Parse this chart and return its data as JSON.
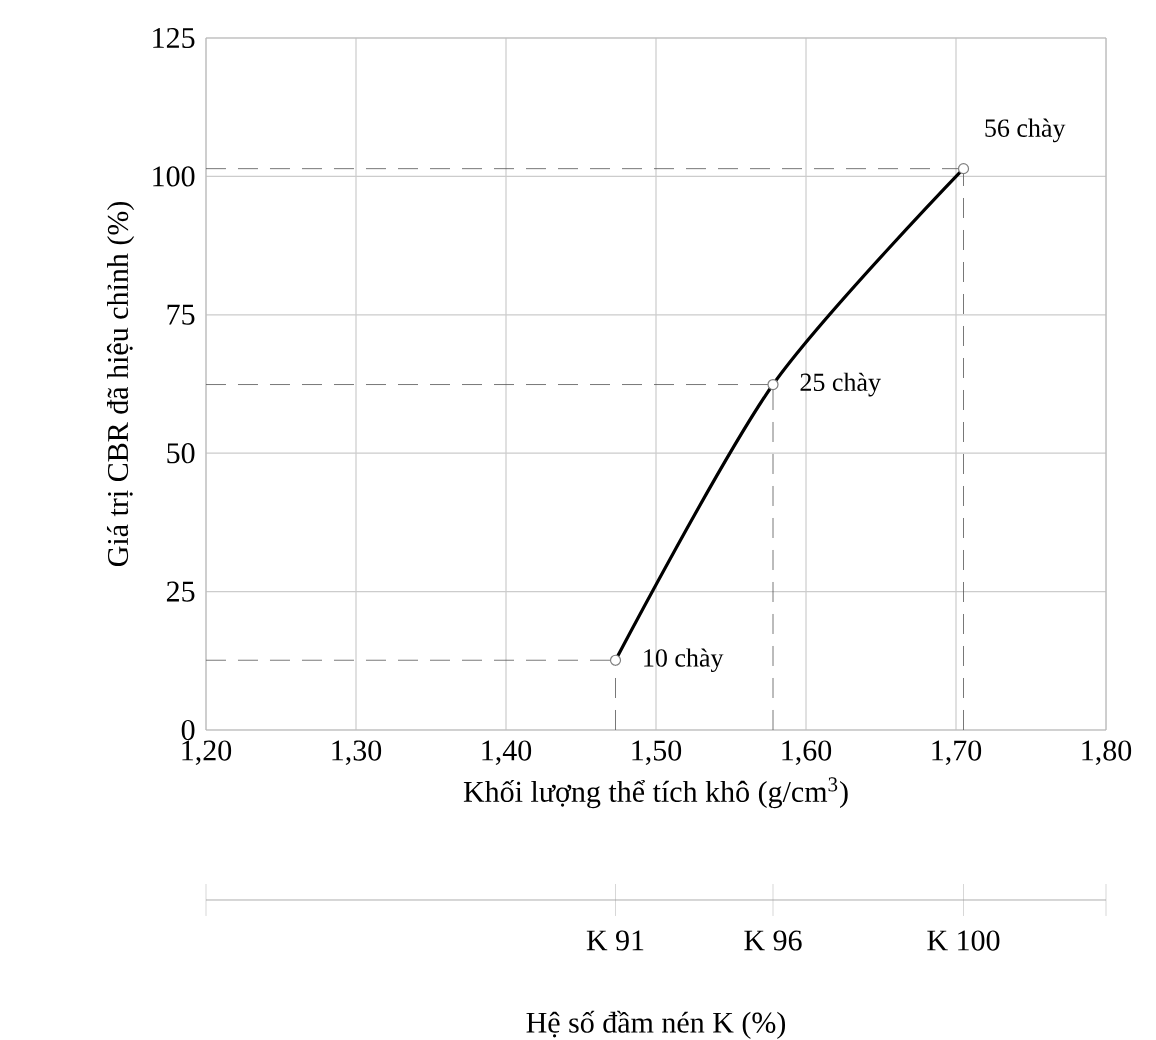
{
  "chart_data": {
    "type": "line",
    "xlabel": "Khối lượng thể tích khô (g/cm$^{3}$)",
    "ylabel": "Giá trị CBR đã hiệu chỉnh (%)",
    "x2label": "Hệ số đầm nén K (%)",
    "series": [
      {
        "color": "#000000",
        "x": [
          1.473,
          1.578,
          1.705
        ],
        "values": [
          12.6,
          62.4,
          101.4
        ]
      }
    ],
    "xlim": [
      1.2,
      1.8
    ],
    "ylim": [
      0,
      125
    ],
    "xticks": [
      {
        "value": 1.2,
        "label": "1,20"
      },
      {
        "value": 1.3,
        "label": "1,30"
      },
      {
        "value": 1.4,
        "label": "1,40"
      },
      {
        "value": 1.5,
        "label": "1,50"
      },
      {
        "value": 1.6,
        "label": "1,60"
      },
      {
        "value": 1.7,
        "label": "1,70"
      },
      {
        "value": 1.8,
        "label": "1,80"
      }
    ],
    "yticks": [
      0,
      25,
      50,
      75,
      100,
      125
    ],
    "ref_lines": [
      {
        "axis": "y",
        "value": 12.6,
        "color": "#555555",
        "line_style": "dashed"
      },
      {
        "axis": "y",
        "value": 62.4,
        "color": "#555555",
        "line_style": "dashed"
      },
      {
        "axis": "y",
        "value": 101.4,
        "color": "#555555",
        "line_style": "dashed"
      },
      {
        "axis": "x",
        "value": 1.473,
        "color": "#555555",
        "line_style": "dashed"
      },
      {
        "axis": "x",
        "value": 1.578,
        "color": "#555555",
        "line_style": "dashed"
      },
      {
        "axis": "x",
        "value": 1.705,
        "color": "#555555",
        "line_style": "dashed"
      }
    ],
    "annotations": [
      {
        "text": "10 chày",
        "x": 1.473,
        "y": 12.6
      },
      {
        "text": "25 chày",
        "x": 1.578,
        "y": 62.4
      },
      {
        "text": "56 chày",
        "x": 1.705,
        "y": 101.4
      },
      {
        "text": "K 91",
        "x": 1.473
      },
      {
        "text": "K 96",
        "x": 1.578
      },
      {
        "text": "K 100",
        "x": 1.705
      }
    ],
    "grid": true,
    "marker": "circle",
    "line_style": "solid"
  }
}
